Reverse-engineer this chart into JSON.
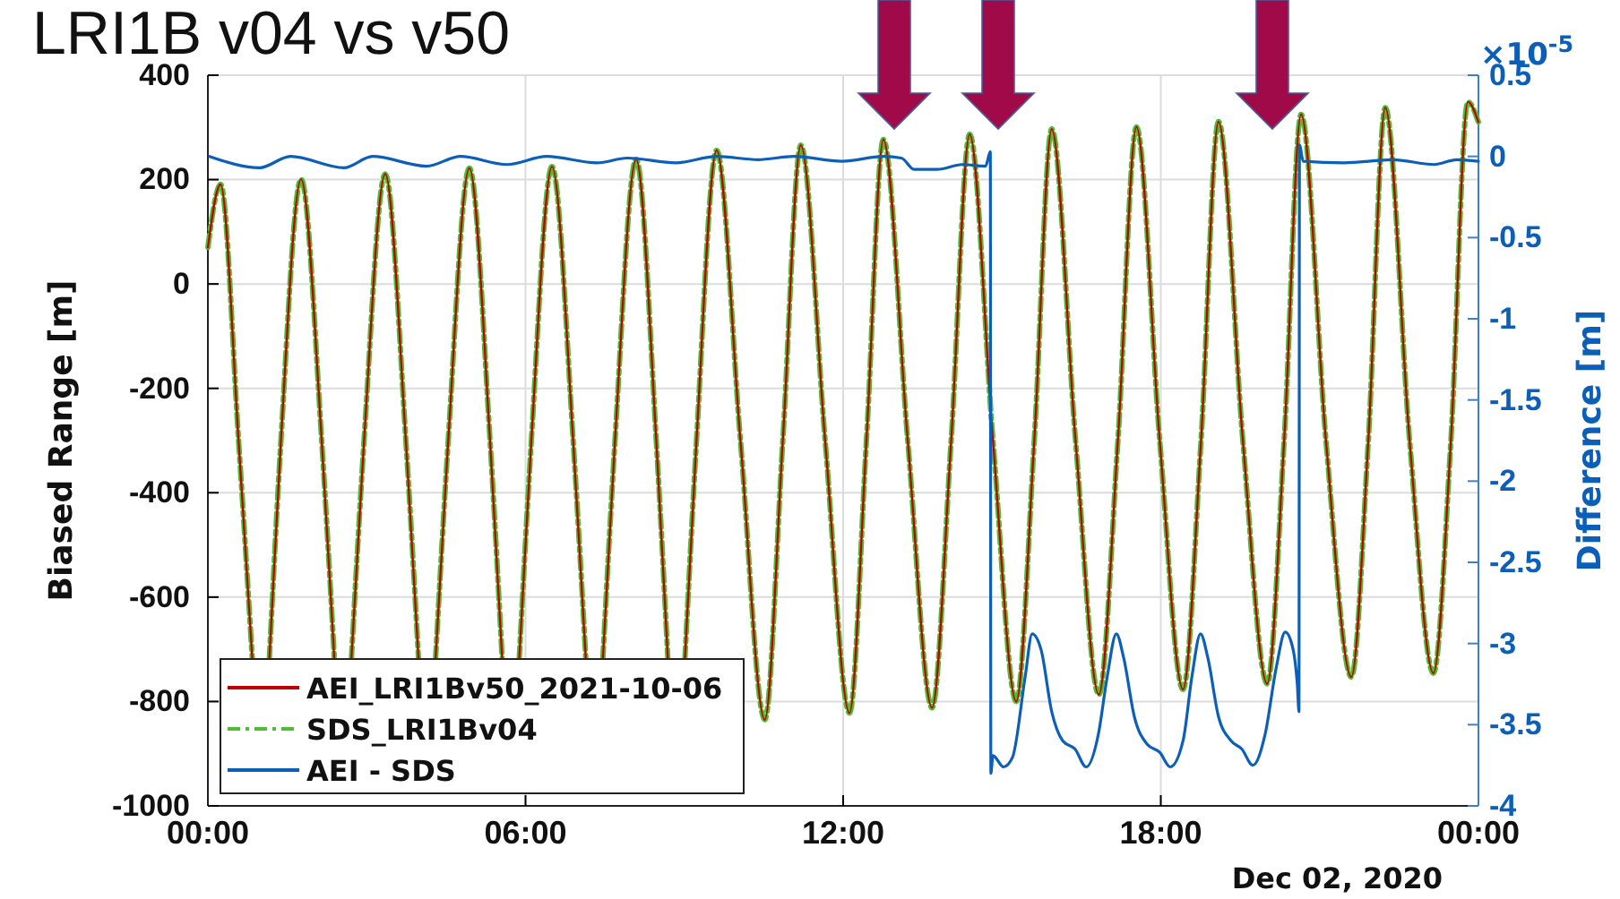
{
  "chart_data": {
    "type": "line",
    "title": "LRI1B v04 vs v50",
    "ylabel": "Biased Range [m]",
    "y2label": "Difference [m]",
    "annotations": [
      "Dec 02, 2020",
      "×10$^{-5}$"
    ],
    "xlim": [
      0,
      24
    ],
    "xticks": [
      {
        "value": 0,
        "label": "00:00"
      },
      {
        "value": 6,
        "label": "06:00"
      },
      {
        "value": 12,
        "label": "12:00"
      },
      {
        "value": 18,
        "label": "18:00"
      },
      {
        "value": 24,
        "label": "00:00"
      }
    ],
    "ylim": [
      -1000,
      400
    ],
    "yticks": [
      -1000,
      -800,
      -600,
      -400,
      -200,
      0,
      200,
      400
    ],
    "y2lim": [
      -4,
      0.5
    ],
    "y2ticks": [
      -4,
      -3.5,
      -3,
      -2.5,
      -2,
      -1.5,
      -1,
      -0.5,
      0,
      0.5
    ],
    "grid": true,
    "legend": "bottom left",
    "x": [
      0,
      0.24,
      0.58,
      0.84,
      1.0,
      1.16,
      1.38,
      1.76,
      2.15,
      2.39,
      2.55,
      2.71,
      2.95,
      3.35,
      3.74,
      3.98,
      4.14,
      4.3,
      4.54,
      4.94,
      5.33,
      5.56,
      5.72,
      5.88,
      6.11,
      6.5,
      6.9,
      7.14,
      7.3,
      7.46,
      7.69,
      8.09,
      8.47,
      8.69,
      8.85,
      9.01,
      9.23,
      9.61,
      10.06,
      10.52,
      10.86,
      11.2,
      11.66,
      12.12,
      12.44,
      12.76,
      13.22,
      13.68,
      14.04,
      14.39,
      14.83,
      15.27,
      15.61,
      15.94,
      16.39,
      16.83,
      17.19,
      17.54,
      17.98,
      18.42,
      18.76,
      19.09,
      19.55,
      20.01,
      20.33,
      20.65,
      21.12,
      21.6,
      21.92,
      22.24,
      22.7,
      23.15,
      23.48,
      23.8,
      24
    ],
    "series": [
      {
        "name": "AEI_LRI1Bv50_2021-10-06",
        "type": "line",
        "color": "#c00000",
        "line_style": "solid",
        "values": [
          70,
          191,
          -300,
          -720,
          null,
          -720,
          -300,
          201,
          -300,
          -720,
          null,
          -720,
          -300,
          211,
          -300,
          -720,
          null,
          -720,
          -300,
          222,
          -300,
          -720,
          null,
          -720,
          -300,
          225,
          -300,
          -720,
          null,
          -720,
          -300,
          239,
          -300,
          -720,
          null,
          -720,
          -300,
          256,
          -300,
          -835,
          -300,
          266,
          -300,
          -822,
          -300,
          277,
          -300,
          -812,
          -300,
          287,
          -300,
          -800,
          -300,
          297,
          -300,
          -787,
          -300,
          301,
          -300,
          -777,
          -300,
          311,
          -300,
          -766,
          -300,
          325,
          -300,
          -753,
          -300,
          338,
          -300,
          -746,
          -300,
          349,
          310
        ]
      },
      {
        "name": "SDS_LRI1Bv04",
        "type": "line",
        "color": "#4dbd33",
        "line_style": "dashed",
        "values": [
          70,
          191,
          -300,
          -720,
          null,
          -720,
          -300,
          201,
          -300,
          -720,
          null,
          -720,
          -300,
          211,
          -300,
          -720,
          null,
          -720,
          -300,
          222,
          -300,
          -720,
          null,
          -720,
          -300,
          225,
          -300,
          -720,
          null,
          -720,
          -300,
          239,
          -300,
          -720,
          null,
          -720,
          -300,
          256,
          -300,
          -835,
          -300,
          266,
          -300,
          -822,
          -300,
          277,
          -300,
          -812,
          -300,
          287,
          -300,
          -800,
          -300,
          297,
          -300,
          -787,
          -300,
          301,
          -300,
          -777,
          -300,
          311,
          -300,
          -766,
          -300,
          325,
          -300,
          -753,
          -300,
          338,
          -300,
          -746,
          -300,
          349,
          310
        ]
      },
      {
        "name": "AEI - SDS",
        "type": "line",
        "color": "#0b5fb8",
        "line_style": "solid",
        "axis": "y2",
        "x": [
          0.03,
          0.98,
          1.56,
          2.57,
          3.11,
          4.13,
          4.77,
          5.65,
          6.4,
          7.35,
          7.92,
          8.84,
          9.61,
          10.39,
          11.07,
          11.98,
          12.76,
          13.1,
          13.34,
          13.78,
          14.25,
          14.69,
          14.78,
          14.79,
          14.83,
          15.03,
          15.2,
          15.44,
          15.57,
          15.74,
          15.94,
          16.15,
          16.38,
          16.59,
          16.82,
          16.99,
          17.16,
          17.3,
          17.5,
          17.74,
          17.98,
          18.18,
          18.42,
          18.59,
          18.75,
          18.89,
          19.09,
          19.33,
          19.53,
          19.74,
          19.97,
          20.18,
          20.35,
          20.48,
          20.58,
          20.61,
          20.62,
          20.69,
          21.46,
          22.38,
          23.16,
          23.59,
          24
        ],
        "values": [
          0,
          -0.07,
          0,
          -0.07,
          0,
          -0.06,
          0,
          -0.05,
          0,
          -0.04,
          -0.01,
          -0.04,
          0,
          -0.02,
          0,
          -0.03,
          0,
          -0.01,
          -0.08,
          -0.08,
          -0.05,
          -0.06,
          0.03,
          -3.8,
          -3.69,
          -3.76,
          -3.7,
          -3.2,
          -2.94,
          -3.04,
          -3.42,
          -3.6,
          -3.65,
          -3.76,
          -3.56,
          -3.2,
          -2.94,
          -3.09,
          -3.45,
          -3.62,
          -3.67,
          -3.76,
          -3.6,
          -3.2,
          -2.94,
          -3.09,
          -3.45,
          -3.6,
          -3.65,
          -3.75,
          -3.56,
          -3.15,
          -2.93,
          -3.01,
          -3.26,
          -3.42,
          0.07,
          -0.03,
          -0.04,
          -0.02,
          -0.05,
          -0.02,
          -0.03
        ]
      }
    ]
  }
}
